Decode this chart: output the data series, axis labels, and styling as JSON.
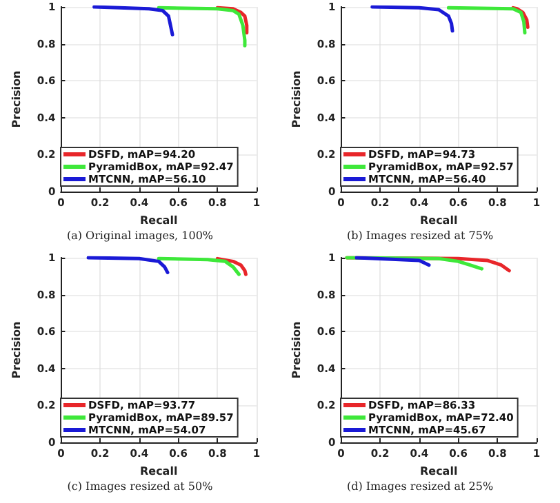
{
  "chart_data": [
    {
      "type": "line",
      "title": "(a) Original images, 100%",
      "xlabel": "Recall",
      "ylabel": "Precision",
      "xlim": [
        0,
        1
      ],
      "ylim": [
        0,
        1
      ],
      "xticks": [
        0,
        0.2,
        0.4,
        0.6,
        0.8,
        1
      ],
      "yticks": [
        0,
        0.2,
        0.4,
        0.6,
        0.8,
        1
      ],
      "grid": true,
      "legend": "bottom left",
      "series": [
        {
          "name": "DSFD, mAP=94.20",
          "color": "#e8262a",
          "x": [
            0.8,
            0.88,
            0.92,
            0.94,
            0.95,
            0.95
          ],
          "values": [
            0.995,
            0.99,
            0.97,
            0.95,
            0.9,
            0.86
          ]
        },
        {
          "name": "PyramidBox, mAP=92.47",
          "color": "#3ee83a",
          "x": [
            0.5,
            0.8,
            0.88,
            0.91,
            0.93,
            0.94,
            0.94
          ],
          "values": [
            0.995,
            0.99,
            0.98,
            0.96,
            0.9,
            0.82,
            0.79
          ]
        },
        {
          "name": "MTCNN, mAP=56.10",
          "color": "#1a1ad6",
          "x": [
            0.17,
            0.3,
            0.45,
            0.52,
            0.55,
            0.56,
            0.57
          ],
          "values": [
            1,
            0.995,
            0.99,
            0.98,
            0.95,
            0.9,
            0.85
          ]
        }
      ]
    },
    {
      "type": "line",
      "title": "(b) Images resized at 75%",
      "xlabel": "Recall",
      "ylabel": "Precision",
      "xlim": [
        0,
        1
      ],
      "ylim": [
        0,
        1
      ],
      "xticks": [
        0,
        0.2,
        0.4,
        0.6,
        0.8,
        1
      ],
      "yticks": [
        0,
        0.2,
        0.4,
        0.6,
        0.8,
        1
      ],
      "grid": true,
      "legend": "bottom left",
      "series": [
        {
          "name": "DSFD, mAP=94.73",
          "color": "#e8262a",
          "x": [
            0.88,
            0.9,
            0.93,
            0.95,
            0.955
          ],
          "values": [
            0.995,
            0.99,
            0.97,
            0.93,
            0.89
          ]
        },
        {
          "name": "PyramidBox, mAP=92.57",
          "color": "#3ee83a",
          "x": [
            0.55,
            0.88,
            0.92,
            0.935,
            0.94
          ],
          "values": [
            0.995,
            0.99,
            0.97,
            0.92,
            0.86
          ]
        },
        {
          "name": "MTCNN, mAP=56.40",
          "color": "#1a1ad6",
          "x": [
            0.16,
            0.4,
            0.5,
            0.55,
            0.565,
            0.57
          ],
          "values": [
            1,
            0.995,
            0.985,
            0.95,
            0.91,
            0.87
          ]
        }
      ]
    },
    {
      "type": "line",
      "title": "(c) Images resized at 50%",
      "xlabel": "Recall",
      "ylabel": "Precision",
      "xlim": [
        0,
        1
      ],
      "ylim": [
        0,
        1
      ],
      "xticks": [
        0,
        0.2,
        0.4,
        0.6,
        0.8,
        1
      ],
      "yticks": [
        0,
        0.2,
        0.4,
        0.6,
        0.8,
        1
      ],
      "grid": true,
      "legend": "bottom left",
      "series": [
        {
          "name": "DSFD, mAP=93.77",
          "color": "#e8262a",
          "x": [
            0.8,
            0.88,
            0.92,
            0.94,
            0.945
          ],
          "values": [
            0.995,
            0.98,
            0.96,
            0.93,
            0.91
          ]
        },
        {
          "name": "PyramidBox, mAP=89.57",
          "color": "#3ee83a",
          "x": [
            0.5,
            0.75,
            0.84,
            0.88,
            0.91
          ],
          "values": [
            0.995,
            0.99,
            0.98,
            0.95,
            0.91
          ]
        },
        {
          "name": "MTCNN, mAP=54.07",
          "color": "#1a1ad6",
          "x": [
            0.14,
            0.4,
            0.5,
            0.53,
            0.545
          ],
          "values": [
            1,
            0.995,
            0.98,
            0.95,
            0.92
          ]
        }
      ]
    },
    {
      "type": "line",
      "title": "(d) Images resized at 25%",
      "xlabel": "Recall",
      "ylabel": "Precision",
      "xlim": [
        0,
        1
      ],
      "ylim": [
        0,
        1
      ],
      "xticks": [
        0,
        0.2,
        0.4,
        0.6,
        0.8,
        1
      ],
      "yticks": [
        0,
        0.2,
        0.4,
        0.6,
        0.8,
        1
      ],
      "grid": true,
      "legend": "bottom left",
      "series": [
        {
          "name": "DSFD, mAP=86.33",
          "color": "#e8262a",
          "x": [
            0.03,
            0.6,
            0.75,
            0.82,
            0.86
          ],
          "values": [
            1,
            0.995,
            0.985,
            0.96,
            0.93
          ]
        },
        {
          "name": "PyramidBox, mAP=72.40",
          "color": "#3ee83a",
          "x": [
            0.03,
            0.5,
            0.6,
            0.66,
            0.72
          ],
          "values": [
            1,
            0.995,
            0.98,
            0.96,
            0.94
          ]
        },
        {
          "name": "MTCNN, mAP=45.67",
          "color": "#1a1ad6",
          "x": [
            0.08,
            0.3,
            0.4,
            0.43,
            0.45
          ],
          "values": [
            1,
            0.99,
            0.985,
            0.97,
            0.96
          ]
        }
      ]
    }
  ]
}
